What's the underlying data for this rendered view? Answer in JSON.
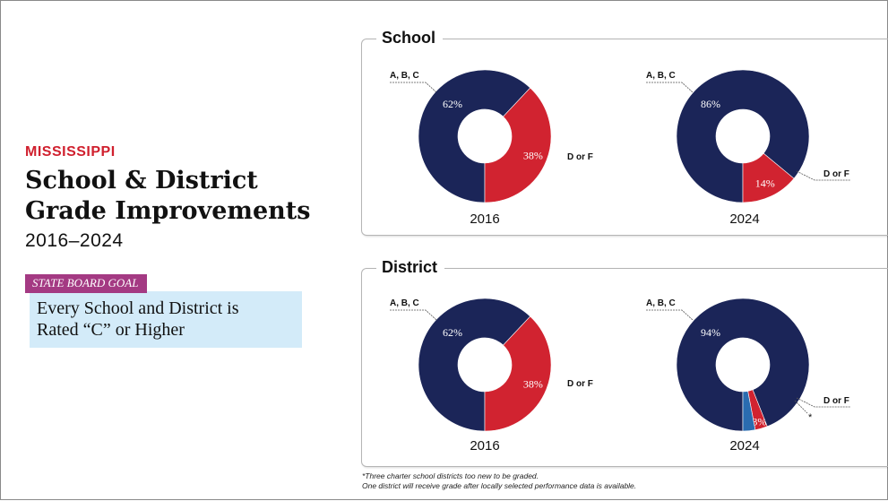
{
  "header": {
    "kicker": "MISSISSIPPI",
    "title_line1": "School & District",
    "title_line2": "Grade Improvements",
    "years": "2016–2024"
  },
  "goal": {
    "tag": "STATE BOARD GOAL",
    "line1": "Every School and District is",
    "line2": "Rated “C” or Higher"
  },
  "panels": {
    "school": "School",
    "district": "District"
  },
  "colors": {
    "navy": "#1b2558",
    "red": "#d12330",
    "blue": "#2a6cb0"
  },
  "chart_data": [
    {
      "type": "pie",
      "title": "School",
      "label": "2016",
      "slices": [
        {
          "label": "A, B, C",
          "value": 62,
          "display": "62%",
          "color": "#1b2558"
        },
        {
          "label": "D or F",
          "value": 38,
          "display": "38%",
          "color": "#d12330"
        }
      ]
    },
    {
      "type": "pie",
      "title": "School",
      "label": "2024",
      "slices": [
        {
          "label": "A, B, C",
          "value": 86,
          "display": "86%",
          "color": "#1b2558"
        },
        {
          "label": "D or F",
          "value": 14,
          "display": "14%",
          "color": "#d12330"
        }
      ]
    },
    {
      "type": "pie",
      "title": "District",
      "label": "2016",
      "slices": [
        {
          "label": "A, B, C",
          "value": 62,
          "display": "62%",
          "color": "#1b2558"
        },
        {
          "label": "D or F",
          "value": 38,
          "display": "38%",
          "color": "#d12330"
        }
      ]
    },
    {
      "type": "pie",
      "title": "District",
      "label": "2024",
      "slices": [
        {
          "label": "A, B, C",
          "value": 94,
          "display": "94%",
          "color": "#1b2558"
        },
        {
          "label": "D or F",
          "value": 3,
          "display": "3%",
          "color": "#d12330"
        },
        {
          "label": "*",
          "value": 3,
          "display": "",
          "color": "#2a6cb0"
        }
      ]
    }
  ],
  "footnote": {
    "line1": "*Three charter school districts too new to be graded.",
    "line2": "One district will receive grade after locally selected performance data is available."
  }
}
